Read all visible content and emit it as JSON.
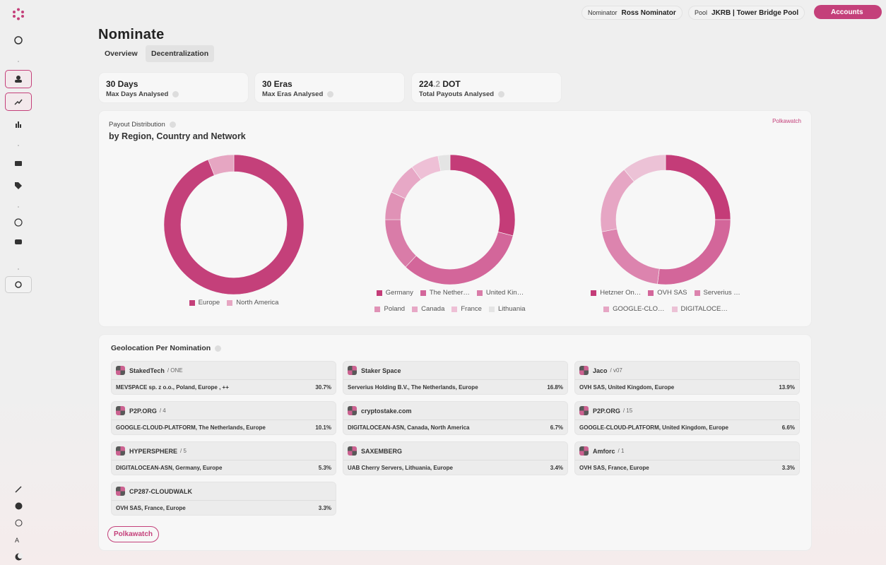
{
  "topbar": {
    "nominator_label": "Nominator",
    "nominator": "Ross Nominator",
    "pool_label": "Pool",
    "pool": "JKRB | Tower Bridge Pool",
    "accounts": "Accounts"
  },
  "header": {
    "title": "Nominate",
    "tabs": [
      "Overview",
      "Decentralization"
    ]
  },
  "stats": [
    {
      "value": "30 Days",
      "label": "Max Days Analysed"
    },
    {
      "value": "30 Eras",
      "label": "Max Eras Analysed"
    },
    {
      "value": "224",
      "fraction": ".2",
      "unit": "DOT",
      "label": "Total Payouts Analysed"
    }
  ],
  "payout": {
    "title": "Payout Distribution",
    "subtitle": "by Region, Country and Network",
    "source": "Polkawatch"
  },
  "chart_data": [
    {
      "type": "pie",
      "categories": [
        "Europe",
        "North America"
      ],
      "values": [
        94,
        6
      ],
      "colors": [
        "#c4407a",
        "#e6a6c2"
      ]
    },
    {
      "type": "pie",
      "categories": [
        "Germany",
        "The Nether…",
        "United Kin…",
        "Poland",
        "Canada",
        "France",
        "Lithuania"
      ],
      "values": [
        29,
        33,
        13,
        7,
        8,
        7,
        3
      ],
      "colors": [
        "#c43c78",
        "#d3669a",
        "#d97ca8",
        "#e092b6",
        "#e7a8c6",
        "#eec0d6",
        "#e4e4e4"
      ]
    },
    {
      "type": "pie",
      "categories": [
        "Hetzner On…",
        "OVH SAS",
        "Serverius …",
        "GOOGLE-CLO…",
        "DIGITALOCE…"
      ],
      "values": [
        25,
        27,
        20,
        17,
        11
      ],
      "colors": [
        "#c43c78",
        "#d3669a",
        "#dc84ae",
        "#e6a6c4",
        "#ecc2d6"
      ]
    }
  ],
  "geolocation": {
    "title": "Geolocation Per Nomination",
    "items": [
      {
        "name": "StakedTech",
        "tag": "/ ONE",
        "location": "MEVSPACE sp. z o.o., Poland, Europe , ++",
        "share": "30.7%"
      },
      {
        "name": "Staker Space",
        "tag": "",
        "location": "Serverius Holding B.V., The Netherlands, Europe",
        "share": "16.8%"
      },
      {
        "name": "Jaco",
        "tag": "/ v07",
        "location": "OVH SAS, United Kingdom, Europe",
        "share": "13.9%"
      },
      {
        "name": "P2P.ORG",
        "tag": "/ 4",
        "location": "GOOGLE-CLOUD-PLATFORM, The Netherlands, Europe",
        "share": "10.1%"
      },
      {
        "name": "cryptostake.com",
        "tag": "",
        "location": "DIGITALOCEAN-ASN, Canada, North America",
        "share": "6.7%"
      },
      {
        "name": "P2P.ORG",
        "tag": "/ 15",
        "location": "GOOGLE-CLOUD-PLATFORM, United Kingdom, Europe",
        "share": "6.6%"
      },
      {
        "name": "HYPERSPHERE",
        "tag": "/ 5",
        "location": "DIGITALOCEAN-ASN, Germany, Europe",
        "share": "5.3%"
      },
      {
        "name": "SAXEMBERG",
        "tag": "",
        "location": "UAB Cherry Servers, Lithuania, Europe",
        "share": "3.4%"
      },
      {
        "name": "Amforc",
        "tag": "/ 1",
        "location": "OVH SAS, France, Europe",
        "share": "3.3%"
      },
      {
        "name": "CP287-CLOUDWALK",
        "tag": "",
        "location": "OVH SAS, France, Europe",
        "share": "3.3%"
      }
    ],
    "button": "Polkawatch"
  }
}
